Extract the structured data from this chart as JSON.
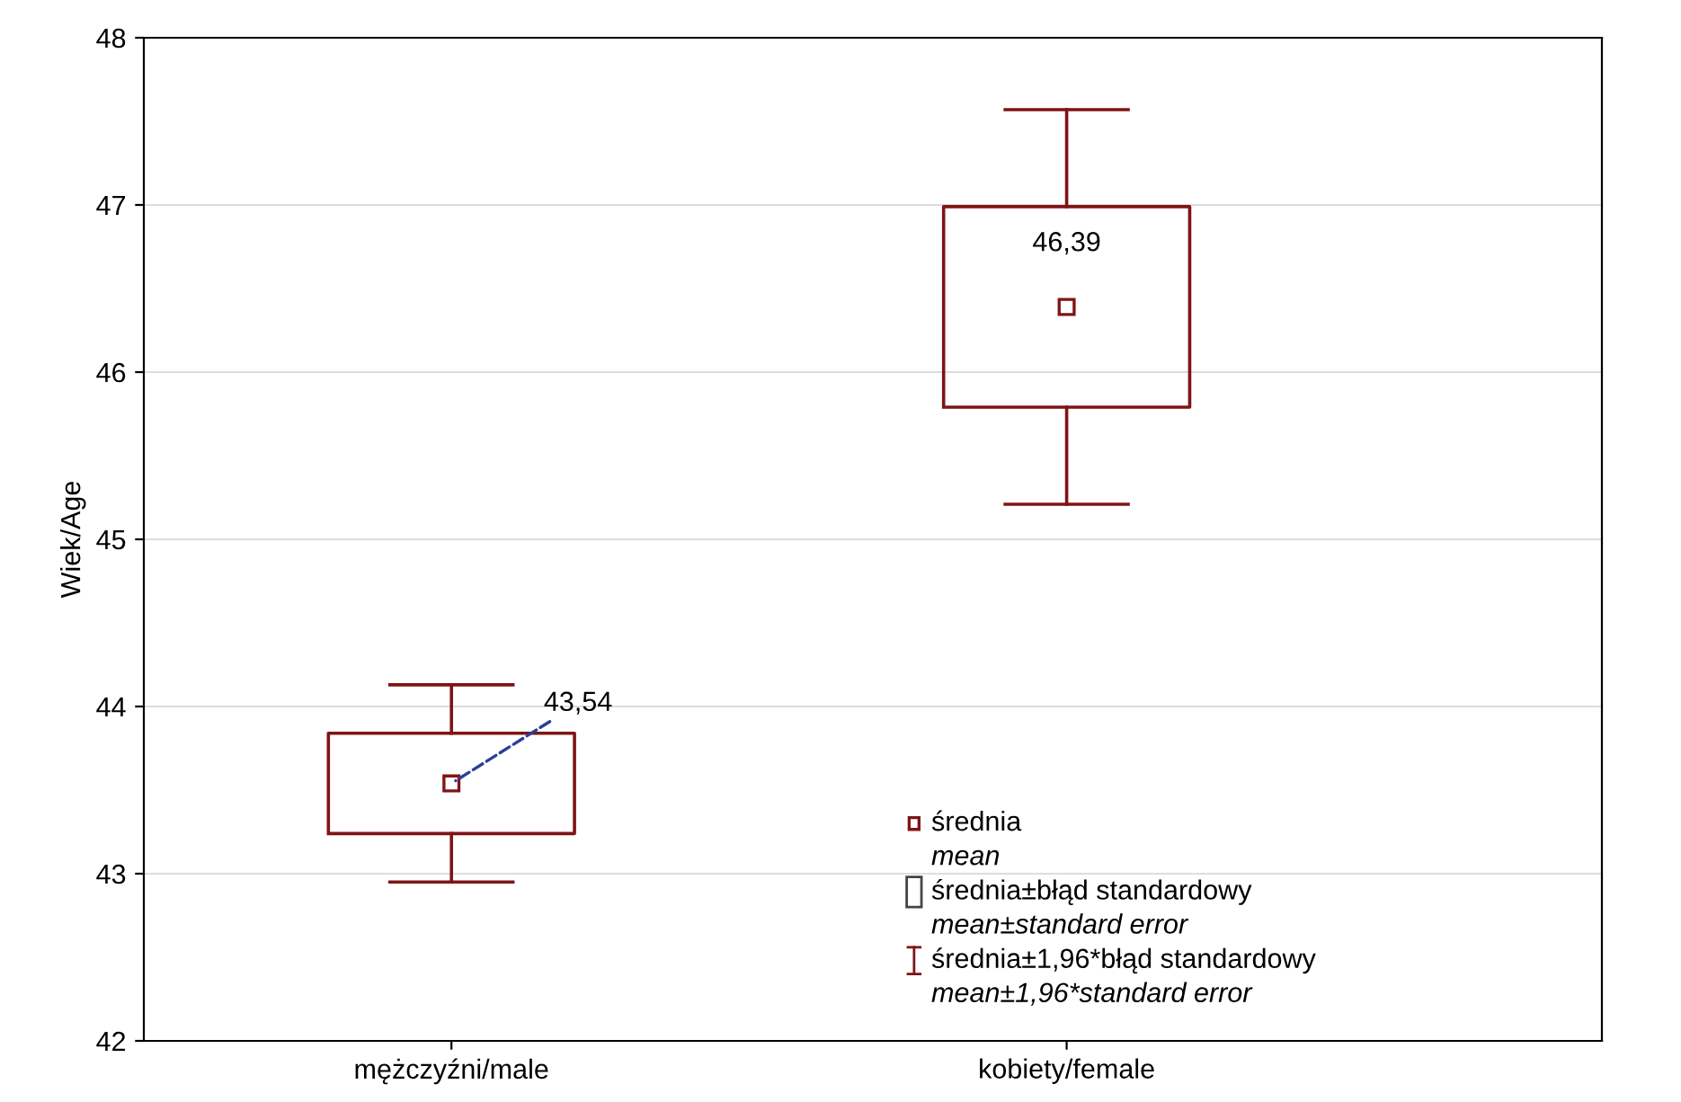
{
  "chart_data": {
    "type": "box",
    "ylabel": "Wiek/Age",
    "categories": [
      "mężczyźni/male",
      "kobiety/female"
    ],
    "boxes": [
      {
        "low": 42.95,
        "q1": 43.24,
        "q3": 43.84,
        "high": 44.13,
        "mean": 43.54
      },
      {
        "low": 45.21,
        "q1": 45.79,
        "q3": 46.99,
        "high": 47.57,
        "mean": 46.39
      }
    ],
    "color": "#7f1416",
    "ylim": [
      42,
      48
    ],
    "yticks": [
      42,
      43,
      44,
      45,
      46,
      47,
      48
    ],
    "grid": "y",
    "annotations": [
      "43,54",
      "46,39",
      "średnia",
      "mean",
      "średnia±błąd standardowy",
      "mean±standard error",
      "średnia±1,96*błąd standardowy",
      "mean±1,96*standard error"
    ]
  }
}
